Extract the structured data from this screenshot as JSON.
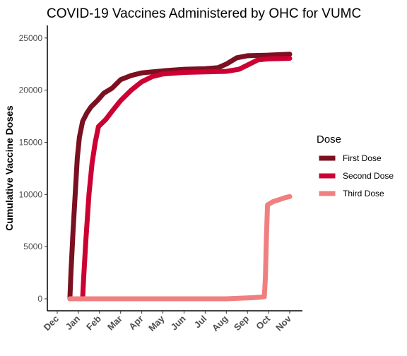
{
  "chart_data": {
    "type": "line",
    "title": "COVID-19 Vaccines Administered by OHC for VUMC",
    "xlabel": "",
    "ylabel": "Cumulative Vaccine Doses",
    "ylim": [
      0,
      26000
    ],
    "yticks": [
      0,
      5000,
      10000,
      15000,
      20000,
      25000
    ],
    "xticks": [
      "Dec",
      "Jan",
      "Feb",
      "Mar",
      "Apr",
      "May",
      "Jun",
      "Jul",
      "Aug",
      "Sep",
      "Oct",
      "Nov"
    ],
    "grid": false,
    "legend": {
      "title": "Dose",
      "position": "right"
    },
    "x_unit": "month",
    "series": [
      {
        "name": "First Dose",
        "color": "#7a1020",
        "points": [
          [
            0.6,
            0
          ],
          [
            0.65,
            2500
          ],
          [
            0.75,
            6500
          ],
          [
            0.85,
            10000
          ],
          [
            0.95,
            13500
          ],
          [
            1.05,
            15500
          ],
          [
            1.2,
            17000
          ],
          [
            1.4,
            17800
          ],
          [
            1.6,
            18400
          ],
          [
            1.9,
            19000
          ],
          [
            2.2,
            19700
          ],
          [
            2.6,
            20200
          ],
          [
            3.0,
            21000
          ],
          [
            3.5,
            21400
          ],
          [
            4.0,
            21650
          ],
          [
            5.0,
            21850
          ],
          [
            6.0,
            22000
          ],
          [
            7.0,
            22050
          ],
          [
            7.6,
            22150
          ],
          [
            8.0,
            22500
          ],
          [
            8.5,
            23100
          ],
          [
            9.0,
            23300
          ],
          [
            10.0,
            23350
          ],
          [
            11.0,
            23450
          ]
        ]
      },
      {
        "name": "Second Dose",
        "color": "#cc0033",
        "points": [
          [
            1.2,
            0
          ],
          [
            1.25,
            2000
          ],
          [
            1.35,
            5500
          ],
          [
            1.5,
            10000
          ],
          [
            1.65,
            13000
          ],
          [
            1.8,
            15000
          ],
          [
            1.95,
            16500
          ],
          [
            2.3,
            17200
          ],
          [
            2.6,
            18000
          ],
          [
            3.0,
            19000
          ],
          [
            3.5,
            20000
          ],
          [
            4.0,
            20800
          ],
          [
            4.5,
            21300
          ],
          [
            5.0,
            21550
          ],
          [
            6.0,
            21700
          ],
          [
            7.0,
            21750
          ],
          [
            8.0,
            21800
          ],
          [
            8.6,
            22000
          ],
          [
            9.0,
            22400
          ],
          [
            9.5,
            22900
          ],
          [
            10.0,
            23000
          ],
          [
            11.0,
            23050
          ]
        ]
      },
      {
        "name": "Third Dose",
        "color": "#f08080",
        "points": [
          [
            0.6,
            0
          ],
          [
            1.0,
            0
          ],
          [
            2.0,
            0
          ],
          [
            3.0,
            0
          ],
          [
            4.0,
            0
          ],
          [
            5.0,
            0
          ],
          [
            6.0,
            0
          ],
          [
            7.0,
            0
          ],
          [
            8.0,
            0
          ],
          [
            8.6,
            50
          ],
          [
            9.2,
            100
          ],
          [
            9.6,
            150
          ],
          [
            9.8,
            200
          ],
          [
            9.85,
            2000
          ],
          [
            9.9,
            6000
          ],
          [
            9.95,
            9000
          ],
          [
            10.2,
            9300
          ],
          [
            10.5,
            9500
          ],
          [
            10.8,
            9700
          ],
          [
            11.0,
            9800
          ]
        ]
      }
    ]
  }
}
